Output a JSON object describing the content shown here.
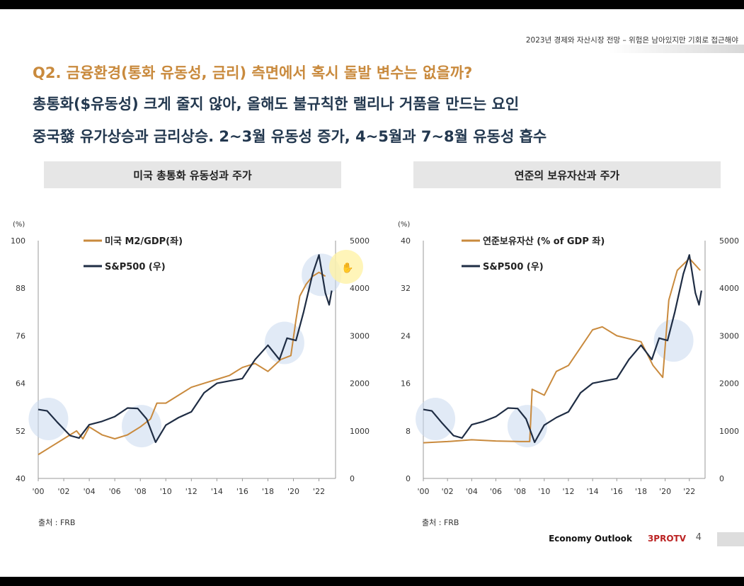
{
  "header": {
    "top_right": "2023년 경제와 자산시장 전망 – 위험은 남아있지만 기회로 접근해야",
    "question": "Q2. 금융환경(통화 유동성, 금리) 측면에서 혹시 돌발 변수는 없을까?",
    "line1": "총통화($유동성) 크게 줄지 않아, 올해도 불규칙한 랠리나 거품을 만드는 요인",
    "line2": "중국發 유가상승과 금리상승. 2~3월 유동성 증가, 4~5월과 7~8월 유동성 흡수"
  },
  "footer": {
    "brand": "Economy Outlook",
    "channel": "3PROTV",
    "page": "4"
  },
  "chart_data": [
    {
      "type": "line",
      "title": "미국 총통화 유동성과 주가",
      "y_unit": "(%)",
      "source": "출처 : FRB",
      "x_ticks": [
        "'00",
        "'02",
        "'04",
        "'06",
        "'08",
        "'10",
        "'12",
        "'14",
        "'16",
        "'18",
        "'20",
        "'22"
      ],
      "y_left_ticks": [
        40,
        52,
        64,
        76,
        88,
        100
      ],
      "y_right_ticks": [
        0,
        1000,
        2000,
        3000,
        4000,
        5000
      ],
      "ylim_left": [
        40,
        100
      ],
      "ylim_right": [
        0,
        5000
      ],
      "xlim": [
        2000,
        2023.3
      ],
      "series": [
        {
          "name": "미국 M2/GDP(좌)",
          "axis": "left",
          "color": "#c98a3d",
          "x": [
            2000,
            2001,
            2002,
            2003,
            2003.5,
            2004,
            2005,
            2006,
            2007,
            2008,
            2008.8,
            2009.3,
            2010,
            2011,
            2012,
            2013,
            2014,
            2015,
            2016,
            2017,
            2018,
            2019,
            2019.8,
            2020.2,
            2020.5,
            2021,
            2021.5,
            2022,
            2022.5
          ],
          "y": [
            46,
            48,
            50,
            52,
            50,
            53,
            51,
            50,
            51,
            53,
            55,
            59,
            59,
            61,
            63,
            64,
            65,
            66,
            68,
            69,
            67,
            70,
            71,
            80,
            86,
            89,
            91,
            92,
            91
          ]
        },
        {
          "name": "S&P500 (우)",
          "axis": "right",
          "color": "#1f2d44",
          "x": [
            2000,
            2000.7,
            2001.5,
            2002.5,
            2003.2,
            2004,
            2005,
            2006,
            2007,
            2007.8,
            2008.5,
            2009.2,
            2010,
            2011,
            2012,
            2013,
            2014,
            2015,
            2016,
            2017,
            2018,
            2018.9,
            2019.5,
            2020.2,
            2020.8,
            2021.5,
            2022,
            2022.5,
            2022.8,
            2023
          ],
          "y": [
            1450,
            1420,
            1180,
            900,
            850,
            1130,
            1200,
            1300,
            1480,
            1470,
            1250,
            760,
            1120,
            1280,
            1400,
            1800,
            2000,
            2050,
            2100,
            2500,
            2800,
            2500,
            2950,
            2900,
            3500,
            4300,
            4700,
            3900,
            3650,
            3950
          ]
        }
      ],
      "highlights": [
        [
          2000.8,
          1250
        ],
        [
          2008.1,
          1100
        ],
        [
          2019.3,
          2850
        ],
        [
          2022.2,
          4280
        ]
      ]
    },
    {
      "type": "line",
      "title": "연준의 보유자산과 주가",
      "y_unit": "(%)",
      "source": "출처 : FRB",
      "x_ticks": [
        "'00",
        "'02",
        "'04",
        "'06",
        "'08",
        "'10",
        "'12",
        "'14",
        "'16",
        "'18",
        "'20",
        "'22"
      ],
      "y_left_ticks": [
        0,
        8,
        16,
        24,
        32,
        40
      ],
      "y_right_ticks": [
        0,
        1000,
        2000,
        3000,
        4000,
        5000
      ],
      "ylim_left": [
        0,
        40
      ],
      "ylim_right": [
        0,
        5000
      ],
      "xlim": [
        2000,
        2023.3
      ],
      "series": [
        {
          "name": "연준보유자산 (% of GDP 좌)",
          "axis": "left",
          "color": "#c98a3d",
          "x": [
            2000,
            2002,
            2004,
            2006,
            2008,
            2008.8,
            2009,
            2010,
            2011,
            2012,
            2013,
            2014,
            2014.8,
            2016,
            2018,
            2019,
            2019.8,
            2020.3,
            2021,
            2022,
            2022.9
          ],
          "y": [
            6,
            6.2,
            6.5,
            6.3,
            6.2,
            6.2,
            15,
            14,
            18,
            19,
            22,
            25,
            25.5,
            24,
            23,
            19,
            17,
            30,
            35,
            37,
            35
          ]
        },
        {
          "name": "S&P500 (우)",
          "axis": "right",
          "color": "#1f2d44",
          "x": [
            2000,
            2000.7,
            2001.5,
            2002.5,
            2003.2,
            2004,
            2005,
            2006,
            2007,
            2007.8,
            2008.5,
            2009.2,
            2010,
            2011,
            2012,
            2013,
            2014,
            2015,
            2016,
            2017,
            2018,
            2018.9,
            2019.5,
            2020.2,
            2020.8,
            2021.5,
            2022,
            2022.5,
            2022.8,
            2023
          ],
          "y": [
            1450,
            1420,
            1180,
            900,
            850,
            1130,
            1200,
            1300,
            1480,
            1470,
            1250,
            760,
            1120,
            1280,
            1400,
            1800,
            2000,
            2050,
            2100,
            2500,
            2800,
            2500,
            2950,
            2900,
            3500,
            4300,
            4700,
            3900,
            3650,
            3950
          ]
        }
      ],
      "highlights": [
        [
          2001,
          1250
        ],
        [
          2008.6,
          1100
        ],
        [
          2020.7,
          2900
        ]
      ]
    }
  ]
}
